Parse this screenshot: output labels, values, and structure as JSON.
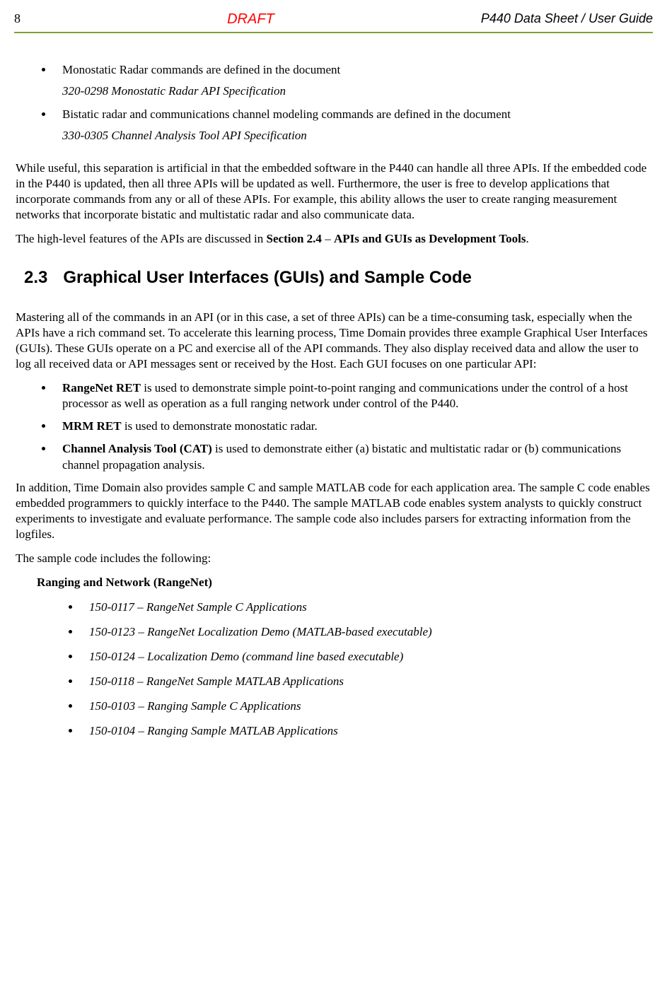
{
  "header": {
    "page_number": "8",
    "draft_label": "DRAFT",
    "doc_title": "P440 Data Sheet / User Guide"
  },
  "top_list": {
    "items": [
      {
        "text": "Monostatic Radar commands are defined in the document",
        "doc": "320-0298 Monostatic Radar API Specification"
      },
      {
        "text": "Bistatic radar and communications channel modeling commands are defined in the document",
        "doc": "330-0305 Channel Analysis Tool API Specification"
      }
    ]
  },
  "para1": "While useful, this separation is artificial in that the embedded software in the P440 can handle all three APIs.  If the embedded code in the P440 is updated, then all three APIs will be updated as well.  Furthermore, the user is free to develop applications that incorporate commands from any or all of these APIs.  For example, this ability allows the user to create ranging measurement networks that incorporate bistatic and multistatic radar and also communicate data.",
  "para2": {
    "pre": "The high-level features of the APIs are discussed in ",
    "bold": "Section 2.4",
    "mid": " – ",
    "bold2": "APIs and GUIs as Development Tools",
    "post": "."
  },
  "section": {
    "number": "2.3",
    "title": "Graphical User Interfaces (GUIs) and Sample Code"
  },
  "para3": "Mastering all of the commands in an API (or in this case, a set of three APIs) can be a time-consuming task, especially when the APIs have a rich command set.  To accelerate this learning process, Time Domain provides three example Graphical User Interfaces (GUIs).  These GUIs operate on a PC and exercise all of the API commands.  They also display received data and allow the user to log all received data or API messages sent or received by the Host.  Each GUI focuses on one particular API:",
  "gui_list": [
    {
      "name": "RangeNet RET",
      "desc": " is used to demonstrate simple point-to-point ranging and communications under the control of a host processor as well as operation as a full ranging network under control of the P440."
    },
    {
      "name": "MRM RET",
      "desc": " is used to demonstrate monostatic radar."
    },
    {
      "name": "Channel Analysis Tool (CAT)",
      "desc": " is used to demonstrate either (a) bistatic and multistatic radar or (b) communications channel propagation analysis."
    }
  ],
  "para4": "In addition, Time Domain also provides sample C and sample MATLAB code for each application area.  The sample C code enables embedded programmers to quickly interface to the P440.  The sample MATLAB code enables system analysts to quickly construct experiments to investigate and evaluate performance. The sample code also includes parsers for extracting information from the logfiles.",
  "para5": "The sample code includes the following:",
  "samples": {
    "heading": "Ranging and Network (RangeNet)",
    "items": [
      "150-0117 – RangeNet Sample C Applications",
      "150-0123 – RangeNet Localization Demo (MATLAB-based executable)",
      "150-0124 – Localization Demo (command line based executable)",
      "150-0118 – RangeNet Sample MATLAB Applications",
      "150-0103 – Ranging Sample C Applications",
      "150-0104 – Ranging Sample MATLAB Applications"
    ]
  }
}
